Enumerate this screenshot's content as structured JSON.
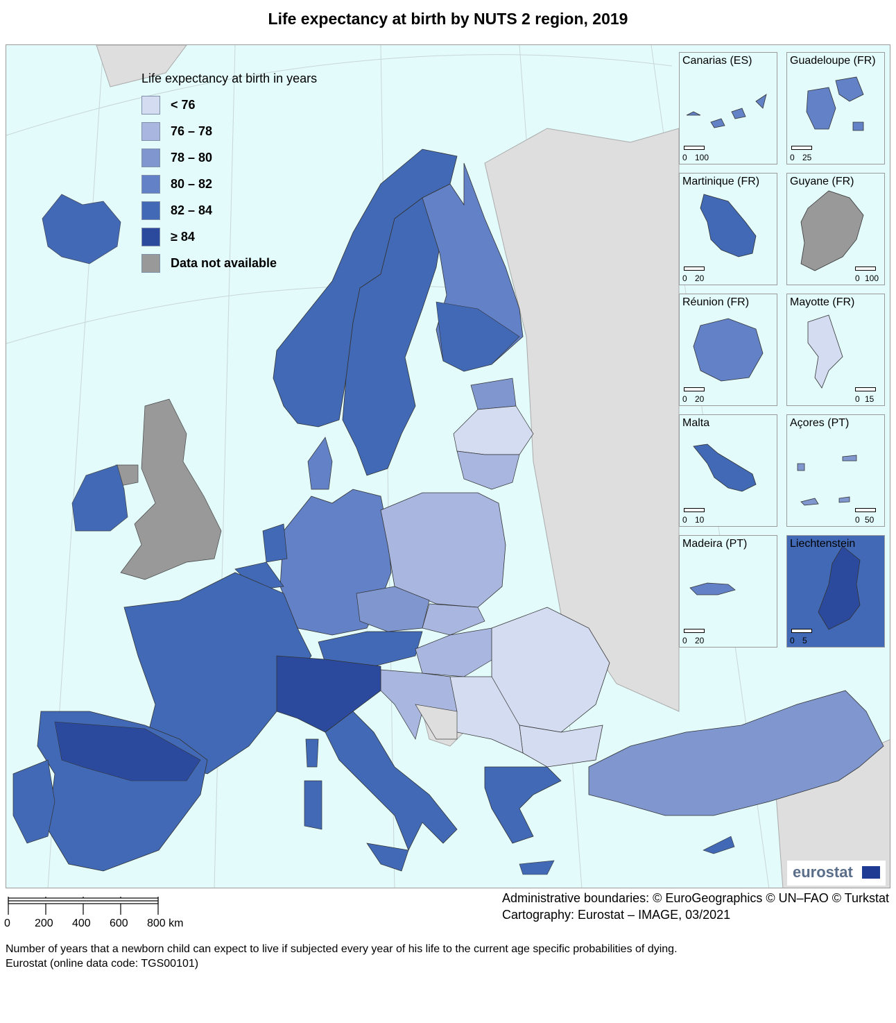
{
  "title": "Life expectancy at birth by NUTS 2 region, 2019",
  "legend": {
    "title": "Life expectancy at birth in years",
    "classes": [
      {
        "label": "< 76",
        "color": "#d3dcf0"
      },
      {
        "label": "76 – 78",
        "color": "#a9b7e0"
      },
      {
        "label": "78 – 80",
        "color": "#7f96cf"
      },
      {
        "label": "80 – 82",
        "color": "#6381c6"
      },
      {
        "label": "82 – 84",
        "color": "#4169b5"
      },
      {
        "label": "≥ 84",
        "color": "#2b4a9e"
      },
      {
        "label": "Data not available",
        "color": "#999999"
      }
    ]
  },
  "colors": {
    "sea": "#e3fbfb",
    "land_outside": "#dedede",
    "border": "#000000"
  },
  "insets": [
    {
      "name": "Canarias (ES)",
      "scale": [
        "0",
        "100"
      ],
      "class": "80 – 82"
    },
    {
      "name": "Guadeloupe (FR)",
      "scale": [
        "0",
        "25"
      ],
      "class": "80 – 82"
    },
    {
      "name": "Martinique (FR)",
      "scale": [
        "0",
        "20"
      ],
      "class": "82 – 84"
    },
    {
      "name": "Guyane (FR)",
      "scale": [
        "0",
        "100"
      ],
      "class": "Data not available"
    },
    {
      "name": "Réunion (FR)",
      "scale": [
        "0",
        "20"
      ],
      "class": "80 – 82"
    },
    {
      "name": "Mayotte (FR)",
      "scale": [
        "0",
        "15"
      ],
      "class": "< 76"
    },
    {
      "name": "Malta",
      "scale": [
        "0",
        "10"
      ],
      "class": "82 – 84"
    },
    {
      "name": "Açores (PT)",
      "scale": [
        "0",
        "50"
      ],
      "class": "78 – 80"
    },
    {
      "name": "Madeira (PT)",
      "scale": [
        "0",
        "20"
      ],
      "class": "80 – 82"
    },
    {
      "name": "Liechtenstein",
      "scale": [
        "0",
        "5"
      ],
      "class": "≥ 84"
    }
  ],
  "logo": "eurostat",
  "credits": [
    "Administrative boundaries: © EuroGeographics © UN–FAO © Turkstat",
    "Cartography: Eurostat – IMAGE, 03/2021"
  ],
  "scale": {
    "ticks": [
      "0",
      "200",
      "400",
      "600",
      "800 km"
    ]
  },
  "footnote": [
    "Number of years that a newborn child can expect to live if subjected every year of his life to the current age specific probabilities of dying.",
    "Eurostat (online data code: TGS00101)"
  ]
}
